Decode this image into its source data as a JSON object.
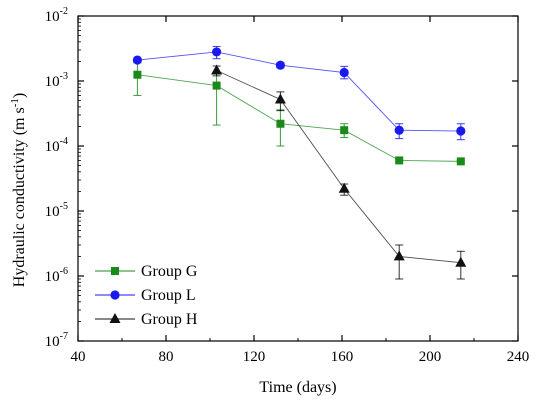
{
  "chart_data": {
    "type": "line",
    "xlabel": "Time (days)",
    "ylabel_main": "Hydraulic conductivity (m s",
    "ylabel_sup": "-1",
    "ylabel_close": ")",
    "xlim": [
      40,
      240
    ],
    "ylim": [
      1e-07,
      0.01
    ],
    "yscale": "log",
    "xticks": [
      40,
      80,
      120,
      160,
      200,
      240
    ],
    "xtick_labels": [
      "40",
      "80",
      "120",
      "160",
      "200",
      "240"
    ],
    "yticks": [
      {
        "value": 0.01,
        "base": "10",
        "exp": "-2"
      },
      {
        "value": 0.001,
        "base": "10",
        "exp": "-3"
      },
      {
        "value": 0.0001,
        "base": "10",
        "exp": "-4"
      },
      {
        "value": 1e-05,
        "base": "10",
        "exp": "-5"
      },
      {
        "value": 1e-06,
        "base": "10",
        "exp": "-6"
      },
      {
        "value": 1e-07,
        "base": "10",
        "exp": "-7"
      }
    ],
    "legend_position": "bottom-left",
    "series": [
      {
        "name": "Group G",
        "color": "#1a8a1a",
        "marker": "square",
        "x": [
          67,
          103,
          132,
          161,
          186,
          214
        ],
        "y": [
          0.00125,
          0.00085,
          0.00022,
          0.000175,
          6e-05,
          5.8e-05
        ],
        "err_lo": [
          0.0006,
          0.00021,
          0.0001,
          0.000135,
          5.8e-05,
          5.6e-05
        ],
        "err_hi": [
          0.0019,
          0.0013,
          0.00036,
          0.00022,
          6.3e-05,
          6e-05
        ]
      },
      {
        "name": "Group L",
        "color": "#1a1aee",
        "marker": "circle",
        "x": [
          67,
          103,
          132,
          161,
          186,
          214
        ],
        "y": [
          0.0021,
          0.0028,
          0.00175,
          0.00135,
          0.000175,
          0.00017
        ],
        "err_lo": [
          0.002,
          0.0022,
          0.0016,
          0.00108,
          0.00013,
          0.000125
        ],
        "err_hi": [
          0.0022,
          0.0034,
          0.0019,
          0.00168,
          0.00022,
          0.00022
        ]
      },
      {
        "name": "Group H",
        "color": "#111111",
        "marker": "triangle",
        "x": [
          103,
          132,
          161,
          186,
          214
        ],
        "y": [
          0.00145,
          0.00052,
          2.2e-05,
          2e-06,
          1.6e-06
        ],
        "err_lo": [
          0.0012,
          0.00035,
          1.75e-05,
          9e-07,
          9e-07
        ],
        "err_hi": [
          0.0017,
          0.00068,
          2.6e-05,
          3e-06,
          2.4e-06
        ]
      }
    ]
  }
}
